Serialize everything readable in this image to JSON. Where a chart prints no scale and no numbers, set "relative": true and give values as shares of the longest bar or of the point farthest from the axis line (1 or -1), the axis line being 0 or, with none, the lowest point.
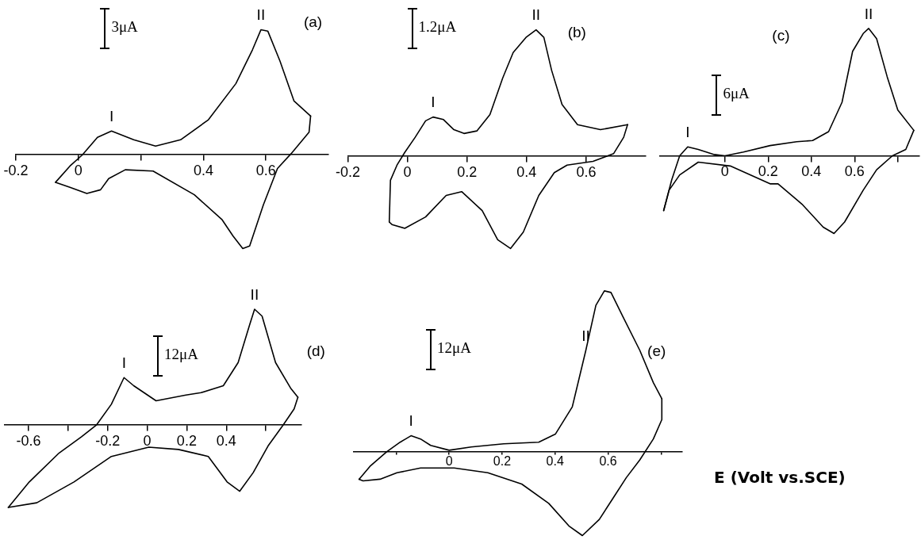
{
  "chart_data": [
    {
      "type": "line",
      "relative": true,
      "marker": "none",
      "line_style": "solid",
      "xlim": [
        -0.2,
        0.8
      ],
      "xticks": [
        -0.2,
        0,
        {
          "value": 0.2,
          "label": null
        },
        0.4,
        0.6
      ],
      "series": [
        {
          "color": "#000000",
          "x": [
            -0.073,
            -0.027,
            0.013,
            0.061,
            0.106,
            0.177,
            0.247,
            0.327,
            0.416,
            0.504,
            0.557,
            0.584,
            0.606,
            0.645,
            0.69,
            0.743
          ],
          "values": [
            -0.22,
            -0.09,
            0,
            0.14,
            0.19,
            0.12,
            0.07,
            0.12,
            0.28,
            0.57,
            0.84,
            1,
            0.99,
            0.75,
            0.43,
            0.31
          ]
        },
        {
          "color": "#000000",
          "x": [
            0.743,
            0.738,
            0.681,
            0.637,
            0.592,
            0.548,
            0.526,
            0.495,
            0.46,
            0.371,
            0.239,
            0.15,
            0.097,
            0.071,
            0.027,
            -0.027,
            -0.073
          ],
          "values": [
            0.31,
            0.18,
            0.01,
            -0.11,
            -0.4,
            -0.73,
            -0.75,
            -0.65,
            -0.52,
            -0.32,
            -0.13,
            -0.12,
            -0.19,
            -0.28,
            -0.31,
            -0.26,
            -0.22
          ]
        }
      ],
      "annotations": [
        "(a)",
        "3μA",
        {
          "text": "I",
          "x": 0.106,
          "y": 0.19
        },
        {
          "text": "II",
          "x": 0.584,
          "y": 1
        }
      ]
    },
    {
      "type": "line",
      "relative": true,
      "marker": "none",
      "line_style": "solid",
      "xlim": [
        -0.2,
        0.8
      ],
      "xticks": [
        -0.2,
        0,
        0.2,
        0.4,
        0.6
      ],
      "series": [
        {
          "color": "#000000",
          "x": [
            -0.061,
            -0.057,
            -0.035,
            -0.009,
            0.026,
            0.061,
            0.086,
            0.121,
            0.156,
            0.19,
            0.233,
            0.277,
            0.32,
            0.355,
            0.398,
            0.432,
            0.458,
            0.484,
            0.519,
            0.571,
            0.648,
            0.739
          ],
          "values": [
            -0.52,
            -0.19,
            -0.07,
            0.03,
            0.15,
            0.28,
            0.31,
            0.29,
            0.21,
            0.18,
            0.2,
            0.33,
            0.62,
            0.82,
            0.94,
            1,
            0.94,
            0.68,
            0.41,
            0.25,
            0.21,
            0.25
          ]
        },
        {
          "color": "#000000",
          "x": [
            0.739,
            0.726,
            0.692,
            0.623,
            0.536,
            0.493,
            0.441,
            0.389,
            0.346,
            0.303,
            0.251,
            0.182,
            0.13,
            0.061,
            -0.009,
            -0.052,
            -0.061
          ],
          "values": [
            0.25,
            0.15,
            0.02,
            -0.04,
            -0.07,
            -0.13,
            -0.31,
            -0.6,
            -0.73,
            -0.66,
            -0.43,
            -0.28,
            -0.31,
            -0.48,
            -0.57,
            -0.54,
            -0.52
          ]
        }
      ],
      "annotations": [
        "(b)",
        "1.2μA",
        {
          "text": "I",
          "x": 0.086,
          "y": 0.31
        },
        {
          "text": "II",
          "x": 0.432,
          "y": 1
        }
      ]
    },
    {
      "type": "line",
      "relative": true,
      "marker": "none",
      "line_style": "solid",
      "xlim": [
        -0.3,
        0.9
      ],
      "xticks": [
        0,
        0.2,
        0.4,
        0.6,
        {
          "value": 0.8,
          "label": null
        }
      ],
      "series": [
        {
          "color": "#000000",
          "x": [
            -0.283,
            -0.246,
            -0.209,
            -0.172,
            -0.123,
            -0.049,
            0,
            0.086,
            0.209,
            0.332,
            0.406,
            0.48,
            0.542,
            0.591,
            0.64,
            0.665,
            0.702,
            0.751,
            0.8,
            0.874
          ],
          "values": [
            -0.43,
            -0.19,
            0,
            0.07,
            0.05,
            0.01,
            0,
            0.03,
            0.08,
            0.11,
            0.12,
            0.19,
            0.42,
            0.82,
            0.96,
            1,
            0.92,
            0.62,
            0.36,
            0.2
          ]
        },
        {
          "color": "#000000",
          "x": [
            0.874,
            0.837,
            0.775,
            0.702,
            0.64,
            0.554,
            0.505,
            0.455,
            0.357,
            0.246,
            0.209,
            0.025,
            -0.123,
            -0.209,
            -0.258,
            -0.283
          ],
          "values": [
            0.2,
            0.05,
            0,
            -0.11,
            -0.27,
            -0.52,
            -0.61,
            -0.56,
            -0.38,
            -0.22,
            -0.22,
            -0.08,
            -0.05,
            -0.15,
            -0.27,
            -0.43
          ]
        }
      ],
      "annotations": [
        "(c)",
        "6μA",
        {
          "text": "I",
          "x": -0.172,
          "y": 0.07
        },
        {
          "text": "II",
          "x": 0.665,
          "y": 1
        }
      ]
    },
    {
      "type": "line",
      "relative": true,
      "marker": "none",
      "line_style": "solid",
      "xlim": [
        -0.72,
        0.78
      ],
      "xticks": [
        -0.6,
        {
          "value": -0.4,
          "label": null
        },
        -0.2,
        0,
        0.2,
        0.4,
        {
          "value": 0.6,
          "label": null
        }
      ],
      "series": [
        {
          "color": "#000000",
          "x": [
            -0.702,
            -0.596,
            -0.445,
            -0.332,
            -0.257,
            -0.181,
            -0.117,
            -0.068,
            0.045,
            0.196,
            0.272,
            0.385,
            0.46,
            0.517,
            0.543,
            0.581,
            0.649,
            0.725,
            0.762
          ],
          "values": [
            -0.71,
            -0.49,
            -0.24,
            -0.1,
            0,
            0.18,
            0.41,
            0.34,
            0.21,
            0.26,
            0.28,
            0.34,
            0.54,
            0.86,
            1,
            0.94,
            0.54,
            0.32,
            0.24
          ]
        },
        {
          "color": "#000000",
          "x": [
            0.762,
            0.743,
            0.687,
            0.611,
            0.536,
            0.468,
            0.404,
            0.309,
            0.158,
            0.008,
            -0.181,
            -0.37,
            -0.558,
            -0.702
          ],
          "values": [
            0.24,
            0.14,
            0,
            -0.18,
            -0.41,
            -0.57,
            -0.49,
            -0.27,
            -0.21,
            -0.19,
            -0.27,
            -0.49,
            -0.67,
            -0.71
          ]
        }
      ],
      "annotations": [
        "(d)",
        "12μA",
        {
          "text": "I",
          "x": -0.117,
          "y": 0.41
        },
        {
          "text": "II",
          "x": 0.543,
          "y": 1
        }
      ]
    },
    {
      "type": "line",
      "relative": true,
      "marker": "none",
      "line_style": "solid",
      "xlabel": "E (Volt vs.SCE)",
      "xlim": [
        -0.36,
        0.88
      ],
      "xticks": [
        {
          "value": -0.2,
          "label": null
        },
        0,
        0.2,
        0.4,
        0.6,
        {
          "value": 0.8,
          "label": null
        }
      ],
      "series": [
        {
          "color": "#000000",
          "x": [
            -0.34,
            -0.299,
            -0.236,
            -0.185,
            -0.144,
            -0.108,
            -0.07,
            0,
            0.083,
            0.206,
            0.338,
            0.401,
            0.465,
            0.516,
            0.554,
            0.586,
            0.611,
            0.656,
            0.72,
            0.771,
            0.803
          ],
          "values": [
            -0.17,
            -0.09,
            0,
            0.06,
            0.1,
            0.08,
            0.04,
            0.01,
            0.03,
            0.05,
            0.06,
            0.11,
            0.28,
            0.63,
            0.91,
            1,
            0.99,
            0.84,
            0.63,
            0.43,
            0.33
          ]
        },
        {
          "color": "#000000",
          "x": [
            0.803,
            0.803,
            0.771,
            0.72,
            0.669,
            0.618,
            0.567,
            0.503,
            0.452,
            0.376,
            0.274,
            0.146,
            0.019,
            -0.108,
            -0.197,
            -0.261,
            -0.325,
            -0.34
          ],
          "values": [
            0.33,
            0.2,
            0.08,
            -0.05,
            -0.16,
            -0.29,
            -0.42,
            -0.52,
            -0.46,
            -0.32,
            -0.2,
            -0.13,
            -0.1,
            -0.1,
            -0.13,
            -0.17,
            -0.18,
            -0.17
          ]
        }
      ],
      "annotations": [
        "(e)",
        "12μA",
        {
          "text": "I",
          "x": -0.144,
          "y": 0.1
        },
        {
          "text": "II",
          "x": 0.516,
          "y": 0.63
        }
      ]
    }
  ]
}
